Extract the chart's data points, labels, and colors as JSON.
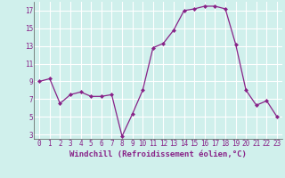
{
  "x": [
    0,
    1,
    2,
    3,
    4,
    5,
    6,
    7,
    8,
    9,
    10,
    11,
    12,
    13,
    14,
    15,
    16,
    17,
    18,
    19,
    20,
    21,
    22,
    23
  ],
  "y": [
    9.0,
    9.3,
    6.5,
    7.5,
    7.8,
    7.3,
    7.3,
    7.5,
    2.8,
    5.3,
    8.0,
    12.8,
    13.3,
    14.8,
    17.0,
    17.2,
    17.5,
    17.5,
    17.2,
    13.2,
    8.0,
    6.3,
    6.8,
    5.0
  ],
  "xlabel": "Windchill (Refroidissement éolien,°C)",
  "line_color": "#882288",
  "marker": "D",
  "marker_size": 2.0,
  "bg_color": "#d0f0ec",
  "grid_color": "#ffffff",
  "ylim": [
    2.5,
    18.0
  ],
  "xlim": [
    -0.5,
    23.5
  ],
  "yticks": [
    3,
    5,
    7,
    9,
    11,
    13,
    15,
    17
  ],
  "xticks": [
    0,
    1,
    2,
    3,
    4,
    5,
    6,
    7,
    8,
    9,
    10,
    11,
    12,
    13,
    14,
    15,
    16,
    17,
    18,
    19,
    20,
    21,
    22,
    23
  ],
  "tick_fontsize": 5.5,
  "xlabel_fontsize": 6.5,
  "linewidth": 0.9
}
